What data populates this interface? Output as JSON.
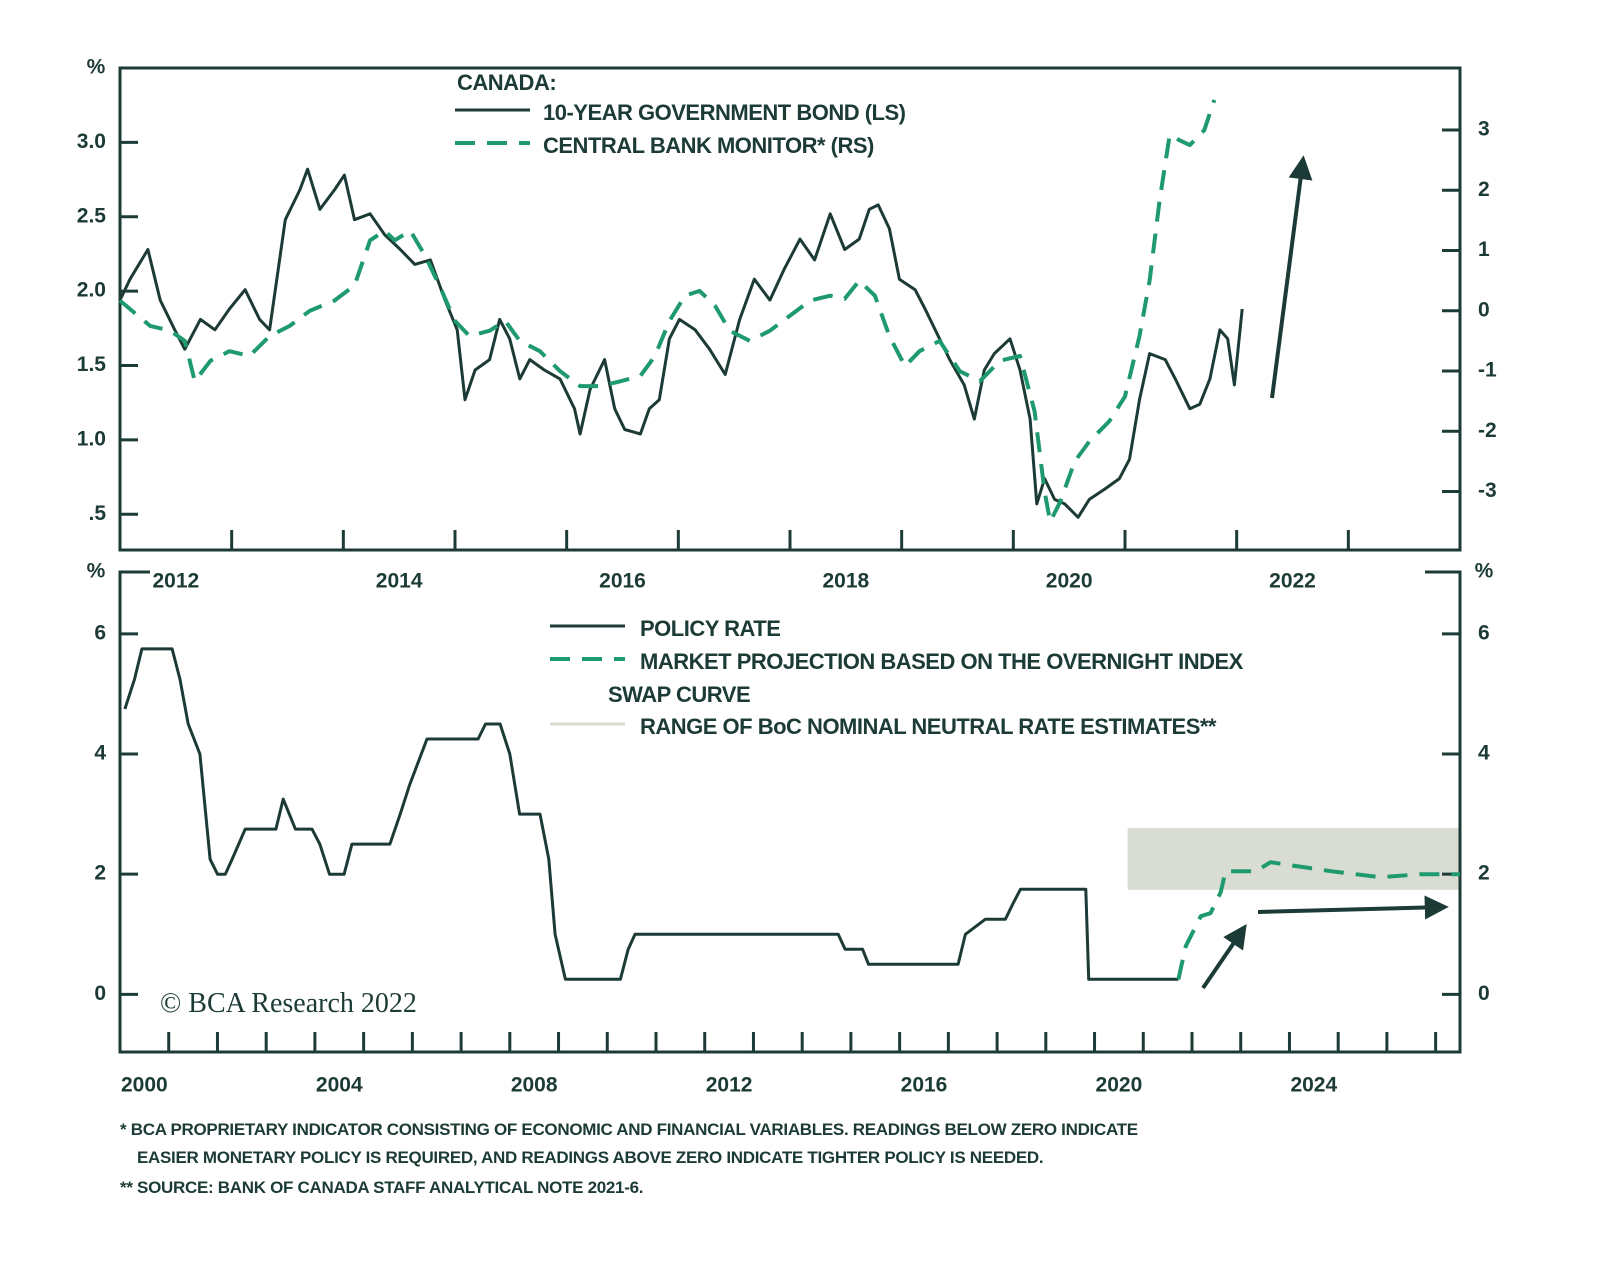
{
  "chart_data": [
    {
      "type": "line",
      "legend_title": "CANADA:",
      "y_unit": "%",
      "xlim": [
        2012,
        2024
      ],
      "xticks": [
        2012,
        2014,
        2016,
        2018,
        2020,
        2022
      ],
      "ylim": [
        0.26,
        3.5
      ],
      "yticks": [
        {
          "value": 3,
          "label": "3.0"
        },
        {
          "value": 2.5,
          "label": "2.5"
        },
        {
          "value": 2,
          "label": "2.0"
        },
        {
          "value": 1.5,
          "label": "1.5"
        },
        {
          "value": 1,
          "label": "1.0"
        },
        {
          "value": 0.5,
          "label": ".5"
        }
      ],
      "y2lim": [
        -3.97,
        4.03
      ],
      "y2ticks": [
        3,
        2,
        1,
        0,
        -1,
        -2,
        -3
      ],
      "series": [
        {
          "name": "10-YEAR GOVERNMENT BOND (LS)",
          "color": "#1c3b36",
          "line_style": "solid",
          "x": [
            2012.0,
            2012.09,
            2012.25,
            2012.36,
            2012.49,
            2012.58,
            2012.72,
            2012.85,
            2012.98,
            2013.12,
            2013.25,
            2013.34,
            2013.48,
            2013.61,
            2013.68,
            2013.79,
            2013.92,
            2014.01,
            2014.1,
            2014.24,
            2014.37,
            2014.51,
            2014.64,
            2014.78,
            2014.91,
            2015.02,
            2015.09,
            2015.18,
            2015.31,
            2015.4,
            2015.49,
            2015.58,
            2015.67,
            2015.8,
            2015.94,
            2016.07,
            2016.12,
            2016.21,
            2016.34,
            2016.43,
            2016.52,
            2016.66,
            2016.74,
            2016.83,
            2016.92,
            2017.01,
            2017.15,
            2017.28,
            2017.42,
            2017.55,
            2017.68,
            2017.82,
            2017.95,
            2018.09,
            2018.22,
            2018.36,
            2018.49,
            2018.62,
            2018.71,
            2018.79,
            2018.89,
            2018.98,
            2019.12,
            2019.21,
            2019.3,
            2019.43,
            2019.56,
            2019.65,
            2019.74,
            2019.83,
            2019.97,
            2020.06,
            2020.15,
            2020.21,
            2020.28,
            2020.37,
            2020.46,
            2020.58,
            2020.68,
            2020.82,
            2020.95,
            2021.04,
            2021.13,
            2021.22,
            2021.36,
            2021.45,
            2021.58,
            2021.67,
            2021.76,
            2021.85,
            2021.92,
            2021.98,
            2022.05
          ],
          "values": [
            1.94,
            2.08,
            2.28,
            1.94,
            1.74,
            1.61,
            1.81,
            1.74,
            1.88,
            2.01,
            1.81,
            1.74,
            2.48,
            2.68,
            2.82,
            2.55,
            2.68,
            2.78,
            2.48,
            2.52,
            2.38,
            2.28,
            2.18,
            2.21,
            1.94,
            1.74,
            1.27,
            1.47,
            1.54,
            1.81,
            1.68,
            1.41,
            1.54,
            1.47,
            1.41,
            1.21,
            1.04,
            1.34,
            1.54,
            1.21,
            1.07,
            1.04,
            1.21,
            1.27,
            1.68,
            1.81,
            1.74,
            1.61,
            1.44,
            1.81,
            2.08,
            1.94,
            2.15,
            2.35,
            2.21,
            2.52,
            2.28,
            2.35,
            2.55,
            2.58,
            2.42,
            2.08,
            2.01,
            1.88,
            1.74,
            1.54,
            1.37,
            1.14,
            1.47,
            1.58,
            1.68,
            1.47,
            1.14,
            0.57,
            0.74,
            0.6,
            0.57,
            0.48,
            0.6,
            0.67,
            0.74,
            0.87,
            1.27,
            1.58,
            1.54,
            1.41,
            1.21,
            1.24,
            1.41,
            1.74,
            1.68,
            1.37,
            1.88
          ]
        },
        {
          "name": "CENTRAL BANK MONITOR* (RS)",
          "color": "#1e9a6e",
          "line_style": "dashed",
          "axis": "y2",
          "x": [
            2012.0,
            2012.27,
            2012.45,
            2012.58,
            2012.67,
            2012.81,
            2012.98,
            2013.16,
            2013.34,
            2013.52,
            2013.7,
            2013.92,
            2014.1,
            2014.24,
            2014.37,
            2014.46,
            2014.6,
            2014.73,
            2014.86,
            2015.0,
            2015.13,
            2015.31,
            2015.45,
            2015.58,
            2015.76,
            2015.94,
            2016.12,
            2016.3,
            2016.48,
            2016.66,
            2016.79,
            2016.92,
            2017.06,
            2017.19,
            2017.33,
            2017.46,
            2017.64,
            2017.82,
            2018.0,
            2018.18,
            2018.36,
            2018.49,
            2018.62,
            2018.76,
            2018.89,
            2019.03,
            2019.16,
            2019.34,
            2019.52,
            2019.7,
            2019.88,
            2020.06,
            2020.19,
            2020.28,
            2020.33,
            2020.42,
            2020.55,
            2020.68,
            2020.86,
            2021.0,
            2021.13,
            2021.22,
            2021.31,
            2021.4,
            2021.49,
            2021.58,
            2021.71,
            2021.8
          ],
          "values": [
            0.17,
            -0.25,
            -0.33,
            -0.5,
            -1.17,
            -0.83,
            -0.67,
            -0.75,
            -0.42,
            -0.25,
            0,
            0.17,
            0.42,
            1.17,
            1.33,
            1.17,
            1.33,
            0.92,
            0.42,
            -0.17,
            -0.42,
            -0.33,
            -0.17,
            -0.5,
            -0.67,
            -1.0,
            -1.25,
            -1.25,
            -1.17,
            -1.08,
            -0.75,
            -0.17,
            0.25,
            0.33,
            0.08,
            -0.33,
            -0.5,
            -0.33,
            -0.08,
            0.17,
            0.25,
            0.2,
            0.5,
            0.25,
            -0.42,
            -0.92,
            -0.67,
            -0.5,
            -1.0,
            -1.17,
            -0.83,
            -0.75,
            -1.67,
            -3.0,
            -3.5,
            -3.17,
            -2.5,
            -2.17,
            -1.83,
            -1.42,
            -0.42,
            0.5,
            1.83,
            2.92,
            2.83,
            2.75,
            3.0,
            3.5
          ]
        }
      ]
    },
    {
      "type": "line",
      "y_unit": "%",
      "xlim": [
        2000,
        2027.5
      ],
      "xticks": [
        2000,
        2004,
        2008,
        2012,
        2016,
        2020,
        2024
      ],
      "ylim": [
        -0.96,
        7.03
      ],
      "yticks": [
        0,
        2,
        4,
        6
      ],
      "band": {
        "name": "RANGE OF BoC NOMINAL NEUTRAL RATE ESTIMATES**",
        "color": "#d9dcd2",
        "x": [
          2020.68,
          2027.5
        ],
        "y": [
          1.74,
          2.77
        ]
      },
      "series": [
        {
          "name": "POLICY RATE",
          "color": "#1c3b36",
          "line_style": "solid",
          "x": [
            2000.1,
            2000.3,
            2000.45,
            2001.07,
            2001.23,
            2001.4,
            2001.64,
            2001.85,
            2002.0,
            2002.16,
            2002.3,
            2002.57,
            2003.2,
            2003.35,
            2003.6,
            2003.94,
            2004.1,
            2004.3,
            2004.6,
            2004.76,
            2005.54,
            2005.75,
            2005.95,
            2006.3,
            2007.35,
            2007.5,
            2007.8,
            2008.0,
            2008.2,
            2008.62,
            2008.8,
            2008.93,
            2009.14,
            2010.27,
            2010.43,
            2010.57,
            2014.74,
            2014.88,
            2015.24,
            2015.36,
            2017.2,
            2017.35,
            2017.76,
            2018.17,
            2018.32,
            2018.48,
            2019.82,
            2019.88,
            2021.72
          ],
          "values": [
            4.75,
            5.25,
            5.75,
            5.75,
            5.25,
            4.5,
            4.0,
            2.25,
            2.0,
            2.0,
            2.25,
            2.75,
            2.75,
            3.25,
            2.75,
            2.75,
            2.5,
            2.0,
            2.0,
            2.5,
            2.5,
            3.0,
            3.5,
            4.25,
            4.25,
            4.5,
            4.5,
            4.0,
            3.0,
            3.0,
            2.25,
            1.0,
            0.25,
            0.25,
            0.75,
            1.0,
            1.0,
            0.75,
            0.75,
            0.5,
            0.5,
            1.0,
            1.25,
            1.25,
            1.5,
            1.75,
            1.75,
            0.25,
            0.25
          ]
        },
        {
          "name": "MARKET PROJECTION BASED ON THE OVERNIGHT INDEX SWAP CURVE",
          "color": "#1e9a6e",
          "line_style": "dashed",
          "x": [
            2021.72,
            2021.87,
            2022.18,
            2022.38,
            2022.59,
            2022.69,
            2023.31,
            2023.61,
            2024.02,
            2024.85,
            2025.87,
            2026.69,
            2027.5
          ],
          "values": [
            0.25,
            0.8,
            1.3,
            1.35,
            1.7,
            2.05,
            2.05,
            2.2,
            2.15,
            2.05,
            1.95,
            2.0,
            2.0
          ]
        }
      ]
    }
  ],
  "copyright": "© BCA Research 2022",
  "footnotes": [
    "*  BCA PROPRIETARY INDICATOR CONSISTING OF ECONOMIC AND FINANCIAL VARIABLES. READINGS BELOW ZERO INDICATE",
    "EASIER MONETARY POLICY IS REQUIRED, AND READINGS ABOVE ZERO INDICATE TIGHTER POLICY IS NEEDED.",
    "** SOURCE: BANK OF CANADA STAFF ANALYTICAL NOTE 2021-6."
  ]
}
